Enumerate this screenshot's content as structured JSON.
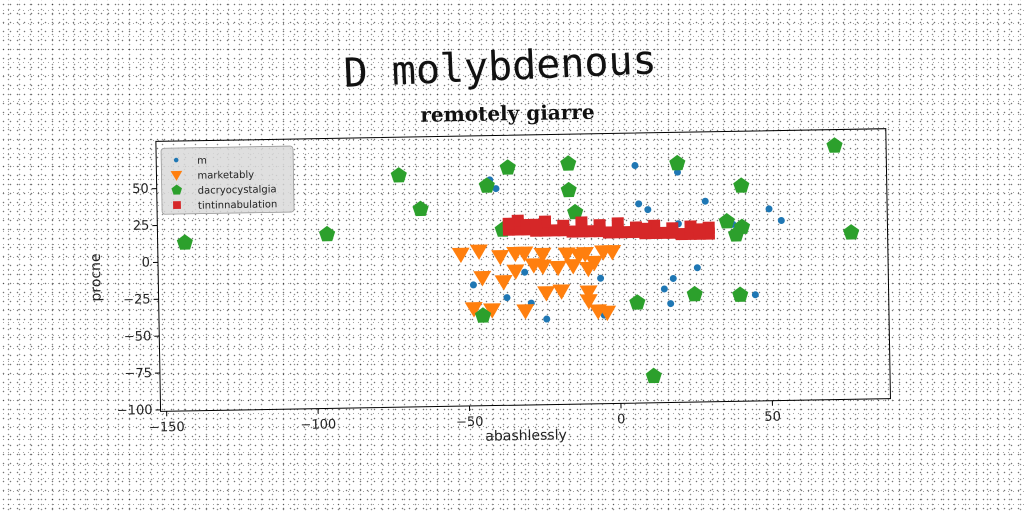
{
  "figure": {
    "title": "D molybdenous"
  },
  "chart_data": {
    "type": "scatter",
    "title": "remotely giarre",
    "xlabel": "abashlessly",
    "ylabel": "procne",
    "xlim": [
      -152,
      89
    ],
    "ylim": [
      -101,
      82
    ],
    "xticks": [
      -150,
      -100,
      -50,
      0,
      50
    ],
    "yticks": [
      50,
      25,
      0,
      -25,
      -50,
      -75,
      -100
    ],
    "xtick_labels": [
      "−150",
      "−100",
      "−50",
      "0",
      "50"
    ],
    "ytick_labels": [
      "50",
      "25",
      "0",
      "−25",
      "−50",
      "−75",
      "−100"
    ],
    "grid": false,
    "legend_position": "top-left",
    "colors": {
      "m": "#1f77b4",
      "marketably": "#ff7f0e",
      "dacryocystalgia": "#2ca02c",
      "tintinnabulation": "#d62728"
    },
    "series": [
      {
        "name": "m",
        "marker": "circle",
        "points": [
          [
            -42,
            52
          ],
          [
            -40,
            46
          ],
          [
            -48,
            -19
          ],
          [
            -37,
            -28
          ],
          [
            -31,
            -11
          ],
          [
            -29,
            -32
          ],
          [
            -24,
            -43
          ],
          [
            -6,
            -16
          ],
          [
            -5,
            -41
          ],
          [
            6,
            60
          ],
          [
            7,
            34
          ],
          [
            10,
            30
          ],
          [
            15,
            -24
          ],
          [
            17,
            -34
          ],
          [
            18,
            -17
          ],
          [
            20,
            20
          ],
          [
            20,
            55
          ],
          [
            26,
            -10
          ],
          [
            29,
            35
          ],
          [
            38,
            19
          ],
          [
            45,
            -29
          ],
          [
            50,
            29
          ],
          [
            54,
            21
          ]
        ]
      },
      {
        "name": "marketably",
        "marker": "triangle-down",
        "points": [
          [
            -52,
            2
          ],
          [
            -46,
            4
          ],
          [
            -39,
            0
          ],
          [
            -34,
            2
          ],
          [
            -31,
            2
          ],
          [
            -25,
            1
          ],
          [
            -17,
            1
          ],
          [
            -11,
            1
          ],
          [
            -5,
            2
          ],
          [
            -2,
            2
          ],
          [
            -45,
            -14
          ],
          [
            -38,
            -17
          ],
          [
            -34,
            -10
          ],
          [
            -28,
            -6
          ],
          [
            -25,
            -7
          ],
          [
            -20,
            -8
          ],
          [
            -15,
            -7
          ],
          [
            -10,
            -9
          ],
          [
            -8,
            -5
          ],
          [
            -13,
            0
          ],
          [
            -48,
            -35
          ],
          [
            -42,
            -36
          ],
          [
            -31,
            -37
          ],
          [
            -24,
            -25
          ],
          [
            -19,
            -24
          ],
          [
            -10,
            -31
          ],
          [
            -7,
            -38
          ],
          [
            -4,
            -39
          ],
          [
            -10,
            -25
          ]
        ]
      },
      {
        "name": "dacryocystalgia",
        "marker": "pentagon",
        "points": [
          [
            -143,
            13
          ],
          [
            -96,
            17
          ],
          [
            -72,
            56
          ],
          [
            -65,
            33
          ],
          [
            -36,
            60
          ],
          [
            -43,
            48
          ],
          [
            -38,
            18
          ],
          [
            -16,
            62
          ],
          [
            -16,
            44
          ],
          [
            -14,
            29
          ],
          [
            -45,
            -40
          ],
          [
            6,
            -33
          ],
          [
            11,
            -83
          ],
          [
            20,
            61
          ],
          [
            25,
            -28
          ],
          [
            36,
            21
          ],
          [
            39,
            12
          ],
          [
            41,
            17
          ],
          [
            41,
            45
          ],
          [
            40,
            -29
          ],
          [
            72,
            71
          ],
          [
            77,
            12
          ]
        ]
      },
      {
        "name": "tintinnabulation",
        "marker": "square",
        "points": [
          [
            -36,
            18
          ],
          [
            -33,
            18
          ],
          [
            -30,
            18
          ],
          [
            -27,
            17
          ],
          [
            -24,
            17
          ],
          [
            -21,
            17
          ],
          [
            -18,
            17
          ],
          [
            -15,
            16
          ],
          [
            -12,
            16
          ],
          [
            -9,
            16
          ],
          [
            -6,
            16
          ],
          [
            -3,
            15
          ],
          [
            0,
            15
          ],
          [
            3,
            15
          ],
          [
            6,
            15
          ],
          [
            9,
            14
          ],
          [
            12,
            14
          ],
          [
            15,
            14
          ],
          [
            18,
            14
          ],
          [
            21,
            13
          ],
          [
            24,
            13
          ],
          [
            27,
            13
          ],
          [
            30,
            13
          ],
          [
            -33,
            24
          ],
          [
            -24,
            23
          ],
          [
            -12,
            22
          ],
          [
            0,
            21
          ],
          [
            12,
            19
          ],
          [
            24,
            18
          ],
          [
            30,
            17
          ],
          [
            -30,
            21
          ],
          [
            -6,
            20
          ],
          [
            18,
            17
          ],
          [
            -36,
            22
          ],
          [
            -18,
            20
          ],
          [
            6,
            18
          ],
          [
            27,
            16
          ],
          [
            -27,
            21
          ],
          [
            9,
            17
          ]
        ]
      }
    ]
  }
}
